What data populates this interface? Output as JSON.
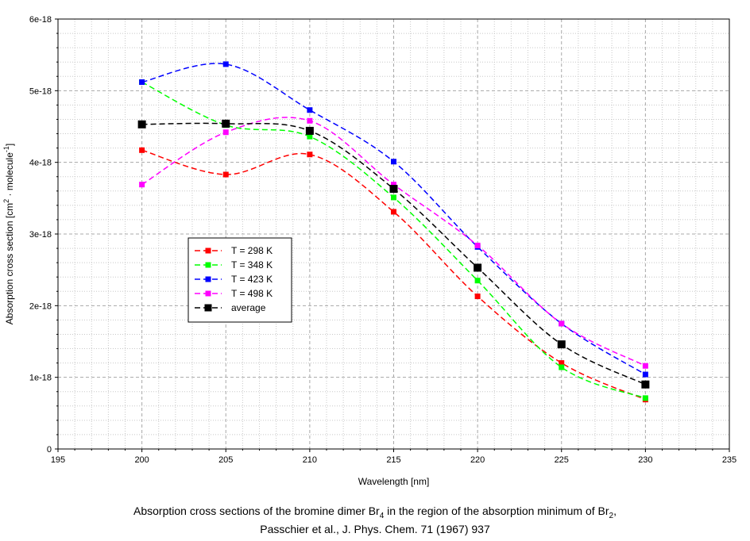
{
  "chart_data": {
    "type": "line",
    "xlabel": "Wavelength [nm]",
    "ylabel": {
      "prefix": "Absorption cross section [cm",
      "exp1": "2",
      "middle": " · molecule",
      "exp2": "-1",
      "suffix": "]"
    },
    "xlim": [
      195,
      235
    ],
    "ylim": [
      0,
      6e-18
    ],
    "x_ticks": [
      195,
      200,
      205,
      210,
      215,
      220,
      225,
      230,
      235
    ],
    "x_tick_labels": [
      "195",
      "200",
      "205",
      "210",
      "215",
      "220",
      "225",
      "230",
      "235"
    ],
    "y_ticks": [
      0,
      1e-18,
      2e-18,
      3e-18,
      4e-18,
      5e-18,
      6e-18
    ],
    "y_tick_labels": [
      "0",
      "1e-18",
      "2e-18",
      "3e-18",
      "4e-18",
      "5e-18",
      "6e-18"
    ],
    "grid": true,
    "legend_position": "center-left",
    "x": [
      200,
      205,
      210,
      215,
      220,
      225,
      230
    ],
    "series": [
      {
        "name": "T = 298 K",
        "color": "#ff0000",
        "values": [
          4.17e-18,
          3.83e-18,
          4.11e-18,
          3.31e-18,
          2.13e-18,
          1.2e-18,
          6.9e-19
        ]
      },
      {
        "name": "T = 348 K",
        "color": "#00ff00",
        "values": [
          5.12e-18,
          4.52e-18,
          4.36e-18,
          3.51e-18,
          2.35e-18,
          1.14e-18,
          7.1e-19
        ]
      },
      {
        "name": "T = 423 K",
        "color": "#0000ff",
        "values": [
          5.12e-18,
          5.37e-18,
          4.73e-18,
          4.01e-18,
          2.82e-18,
          1.75e-18,
          1.04e-18
        ]
      },
      {
        "name": "T = 498 K",
        "color": "#ff00ff",
        "values": [
          3.69e-18,
          4.42e-18,
          4.58e-18,
          3.69e-18,
          2.84e-18,
          1.75e-18,
          1.16e-18
        ]
      },
      {
        "name": "average",
        "color": "#000000",
        "values": [
          4.53e-18,
          4.54e-18,
          4.44e-18,
          3.63e-18,
          2.53e-18,
          1.46e-18,
          9e-19
        ]
      }
    ]
  },
  "caption": {
    "line1_prefix": "Absorption cross sections of the bromine dimer Br",
    "line1_sub1": "4",
    "line1_middle": " in the region of the absorption minimum of Br",
    "line1_sub2": "2",
    "line1_suffix": ",",
    "line2": "Passchier et al., J. Phys. Chem. 71 (1967) 937"
  }
}
